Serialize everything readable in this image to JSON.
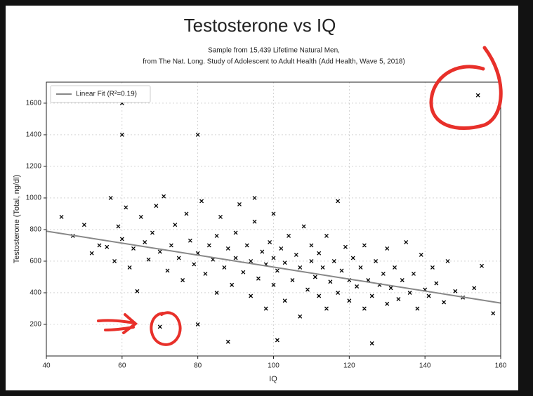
{
  "chart_data": {
    "type": "scatter",
    "title": "Testosterone vs IQ",
    "subtitle": [
      "Sample from 15,439 Lifetime Natural Men,",
      "from The Nat. Long. Study of Adolescent to Adult Health (Add Health, Wave 5, 2018)"
    ],
    "x_label": "IQ",
    "y_label": "Testosterone (Total, ng/dl)",
    "xlim": [
      40,
      160
    ],
    "xticks": [
      40,
      60,
      80,
      100,
      120,
      140,
      160
    ],
    "ylim": [
      0,
      1733
    ],
    "yticks": [
      200,
      400,
      600,
      800,
      1000,
      1200,
      1400,
      1600
    ],
    "grid": true,
    "legend": "upper left",
    "series": [
      {
        "type": "scatter",
        "color": "#000000",
        "x": [
          44,
          47,
          50,
          52,
          54,
          56,
          57,
          58,
          59,
          60,
          61,
          62,
          63,
          64,
          65,
          66,
          67,
          68,
          69,
          70,
          70,
          71,
          72,
          73,
          74,
          75,
          76,
          77,
          78,
          79,
          80,
          80,
          81,
          82,
          83,
          84,
          85,
          85,
          86,
          87,
          88,
          89,
          90,
          90,
          91,
          92,
          93,
          94,
          94,
          95,
          96,
          97,
          98,
          98,
          99,
          100,
          100,
          100,
          101,
          102,
          103,
          103,
          104,
          105,
          106,
          107,
          107,
          108,
          109,
          110,
          110,
          111,
          112,
          112,
          113,
          114,
          114,
          115,
          116,
          117,
          117,
          118,
          119,
          120,
          120,
          121,
          122,
          123,
          124,
          124,
          125,
          126,
          127,
          128,
          129,
          130,
          130,
          131,
          132,
          133,
          134,
          135,
          136,
          137,
          138,
          139,
          140,
          141,
          142,
          143,
          145,
          146,
          148,
          150,
          153,
          154,
          155,
          158,
          88,
          101,
          126,
          95,
          60,
          60,
          80
        ],
        "values": [
          880,
          760,
          830,
          650,
          700,
          690,
          1000,
          600,
          820,
          740,
          940,
          560,
          680,
          410,
          880,
          720,
          610,
          780,
          950,
          185,
          660,
          1010,
          540,
          700,
          830,
          620,
          480,
          900,
          730,
          580,
          200,
          650,
          980,
          520,
          700,
          610,
          400,
          760,
          880,
          560,
          680,
          450,
          620,
          780,
          960,
          530,
          700,
          380,
          600,
          850,
          490,
          660,
          300,
          580,
          720,
          450,
          620,
          900,
          540,
          680,
          350,
          590,
          760,
          480,
          640,
          250,
          560,
          820,
          420,
          600,
          700,
          500,
          380,
          650,
          560,
          300,
          760,
          470,
          600,
          980,
          400,
          540,
          690,
          350,
          480,
          620,
          440,
          560,
          300,
          700,
          480,
          380,
          600,
          450,
          520,
          330,
          680,
          430,
          560,
          360,
          480,
          720,
          400,
          520,
          300,
          640,
          420,
          380,
          560,
          460,
          340,
          600,
          410,
          370,
          430,
          1650,
          570,
          270,
          90,
          100,
          80,
          1000,
          1600,
          1400,
          1400
        ]
      },
      {
        "type": "line",
        "name": "Linear Fit (R²=0.19)",
        "color": "#888888",
        "x": [
          40,
          160
        ],
        "values": [
          790,
          335
        ]
      }
    ]
  }
}
